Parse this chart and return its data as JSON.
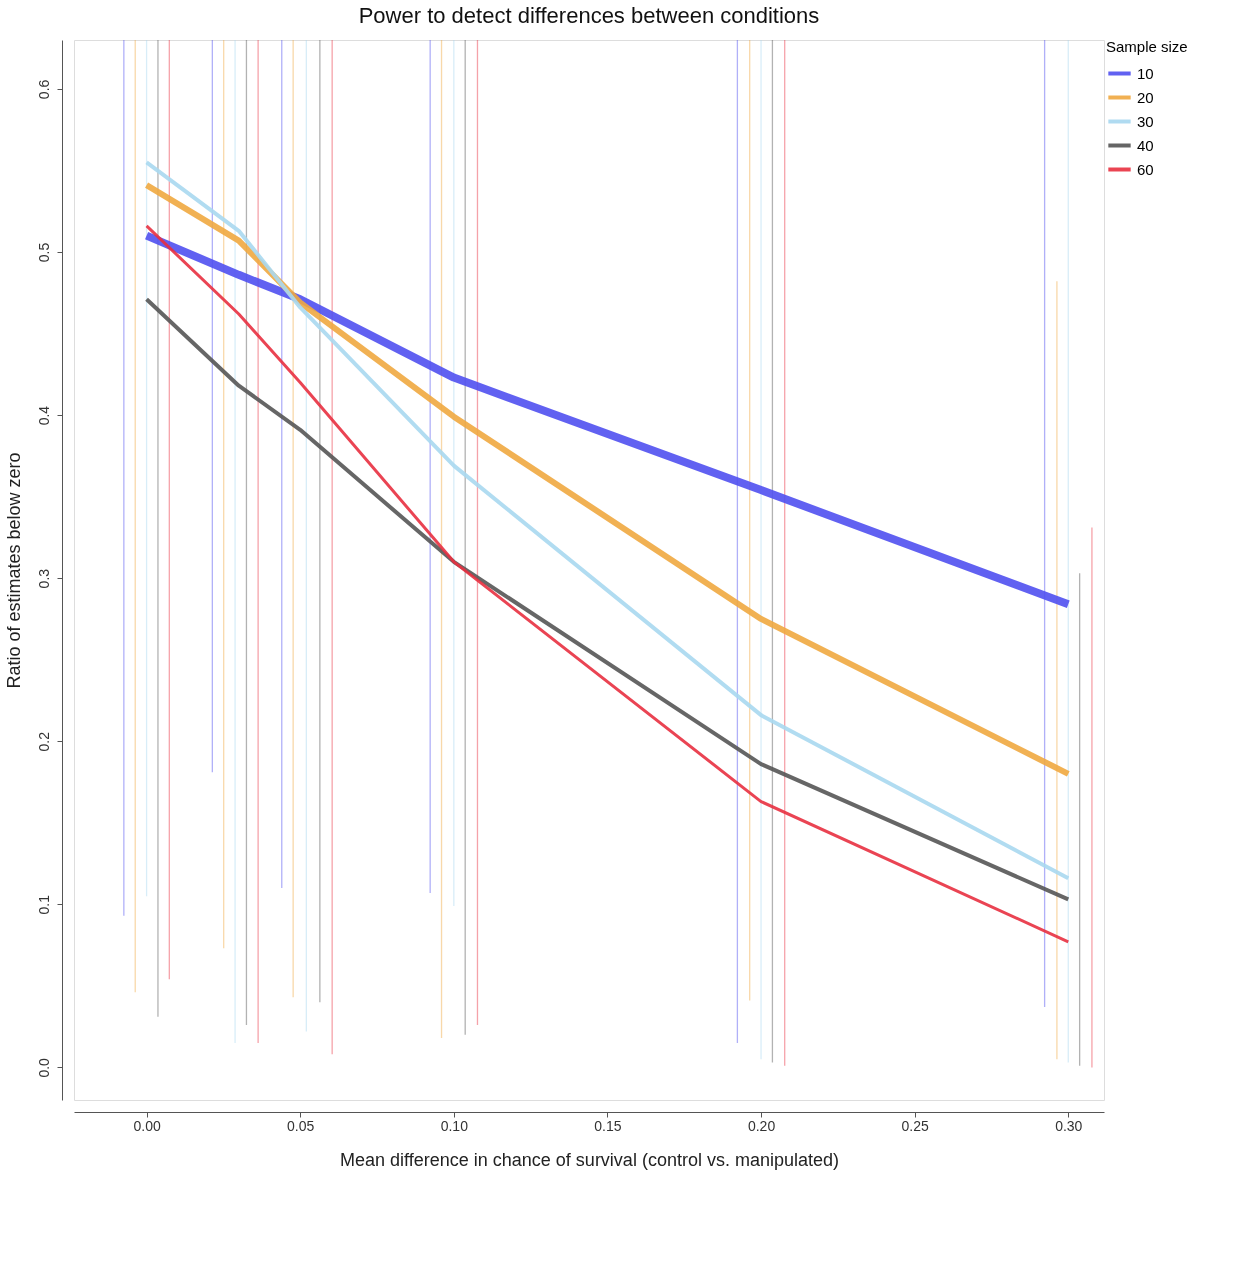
{
  "chart_data": {
    "type": "line",
    "title": "Power to detect differences between conditions",
    "xlabel": "Mean difference in chance of survival (control vs. manipulated)",
    "ylabel": "Ratio of estimates below zero",
    "legend_title": "Sample size",
    "legend": "top right",
    "grid": false,
    "marker": "none",
    "line_style": "solid",
    "x": [
      0,
      0.03,
      0.05,
      0.1,
      0.2,
      0.3
    ],
    "xlim": [
      -0.022,
      0.31
    ],
    "ylim": [
      -0.02,
      0.63
    ],
    "xticks": [
      {
        "value": 0,
        "label": "0.00"
      },
      0.05,
      {
        "value": 0.1,
        "label": "0.10"
      },
      0.15,
      {
        "value": 0.2,
        "label": "0.20"
      },
      0.25,
      {
        "value": 0.3,
        "label": "0.30"
      }
    ],
    "yticks": [
      {
        "value": 0,
        "label": "0.0"
      },
      0.1,
      0.2,
      0.3,
      0.4,
      0.5,
      0.6
    ],
    "series": [
      {
        "type": "bar",
        "color": "#5050f0",
        "x": [
          -0.0074,
          0.0214,
          0.044,
          0.0923,
          0.1923,
          0.2923
        ],
        "base": [
          0.093,
          0.181,
          0.11,
          0.107,
          0.015,
          0.037
        ],
        "values": [
          0.537,
          0.449,
          0.52,
          0.523,
          0.615,
          0.593
        ]
      },
      {
        "type": "bar",
        "color": "#f0a840",
        "x": [
          -0.0037,
          0.0251,
          0.0477,
          0.096,
          0.1963,
          0.2963
        ],
        "base": [
          0.046,
          0.073,
          0.043,
          0.018,
          0.041,
          0.005
        ],
        "values": [
          0.584,
          0.557,
          0.587,
          0.612,
          0.589,
          0.477
        ]
      },
      {
        "type": "bar",
        "color": "#a8d8f0",
        "x": [
          0,
          0.0288,
          0.052,
          0.1,
          0.2,
          0.3
        ],
        "base": [
          0.105,
          0.015,
          0.022,
          0.099,
          0.005,
          0.003
        ],
        "values": [
          0.525,
          0.615,
          0.608,
          0.531,
          0.625,
          0.627
        ]
      },
      {
        "type": "bar",
        "color": "#555555",
        "x": [
          0.0037,
          0.0325,
          0.0564,
          0.1037,
          0.2037,
          0.3037
        ],
        "base": [
          0.031,
          0.026,
          0.04,
          0.02,
          0.003,
          0.001
        ],
        "values": [
          0.599,
          0.604,
          0.59,
          0.61,
          0.627,
          0.302
        ]
      },
      {
        "type": "bar",
        "color": "#e83040",
        "x": [
          0.0074,
          0.0363,
          0.0604,
          0.1077,
          0.2077,
          0.3077
        ],
        "base": [
          0.054,
          0.015,
          0.008,
          0.026,
          0.001,
          0.0
        ],
        "values": [
          0.576,
          0.615,
          0.622,
          0.604,
          0.629,
          0.331
        ]
      },
      {
        "name": "10",
        "color": "#5050f0",
        "values": [
          0.51,
          0.486,
          0.471,
          0.423,
          0.354,
          0.284
        ]
      },
      {
        "name": "20",
        "color": "#f0a840",
        "values": [
          0.541,
          0.507,
          0.469,
          0.399,
          0.275,
          0.18
        ]
      },
      {
        "name": "30",
        "color": "#a8d8f0",
        "values": [
          0.555,
          0.513,
          0.466,
          0.369,
          0.216,
          0.116
        ]
      },
      {
        "name": "40",
        "color": "#555555",
        "values": [
          0.471,
          0.418,
          0.391,
          0.31,
          0.186,
          0.103
        ]
      },
      {
        "name": "60",
        "color": "#e83040",
        "values": [
          0.516,
          0.462,
          0.42,
          0.31,
          0.163,
          0.077
        ]
      }
    ]
  }
}
